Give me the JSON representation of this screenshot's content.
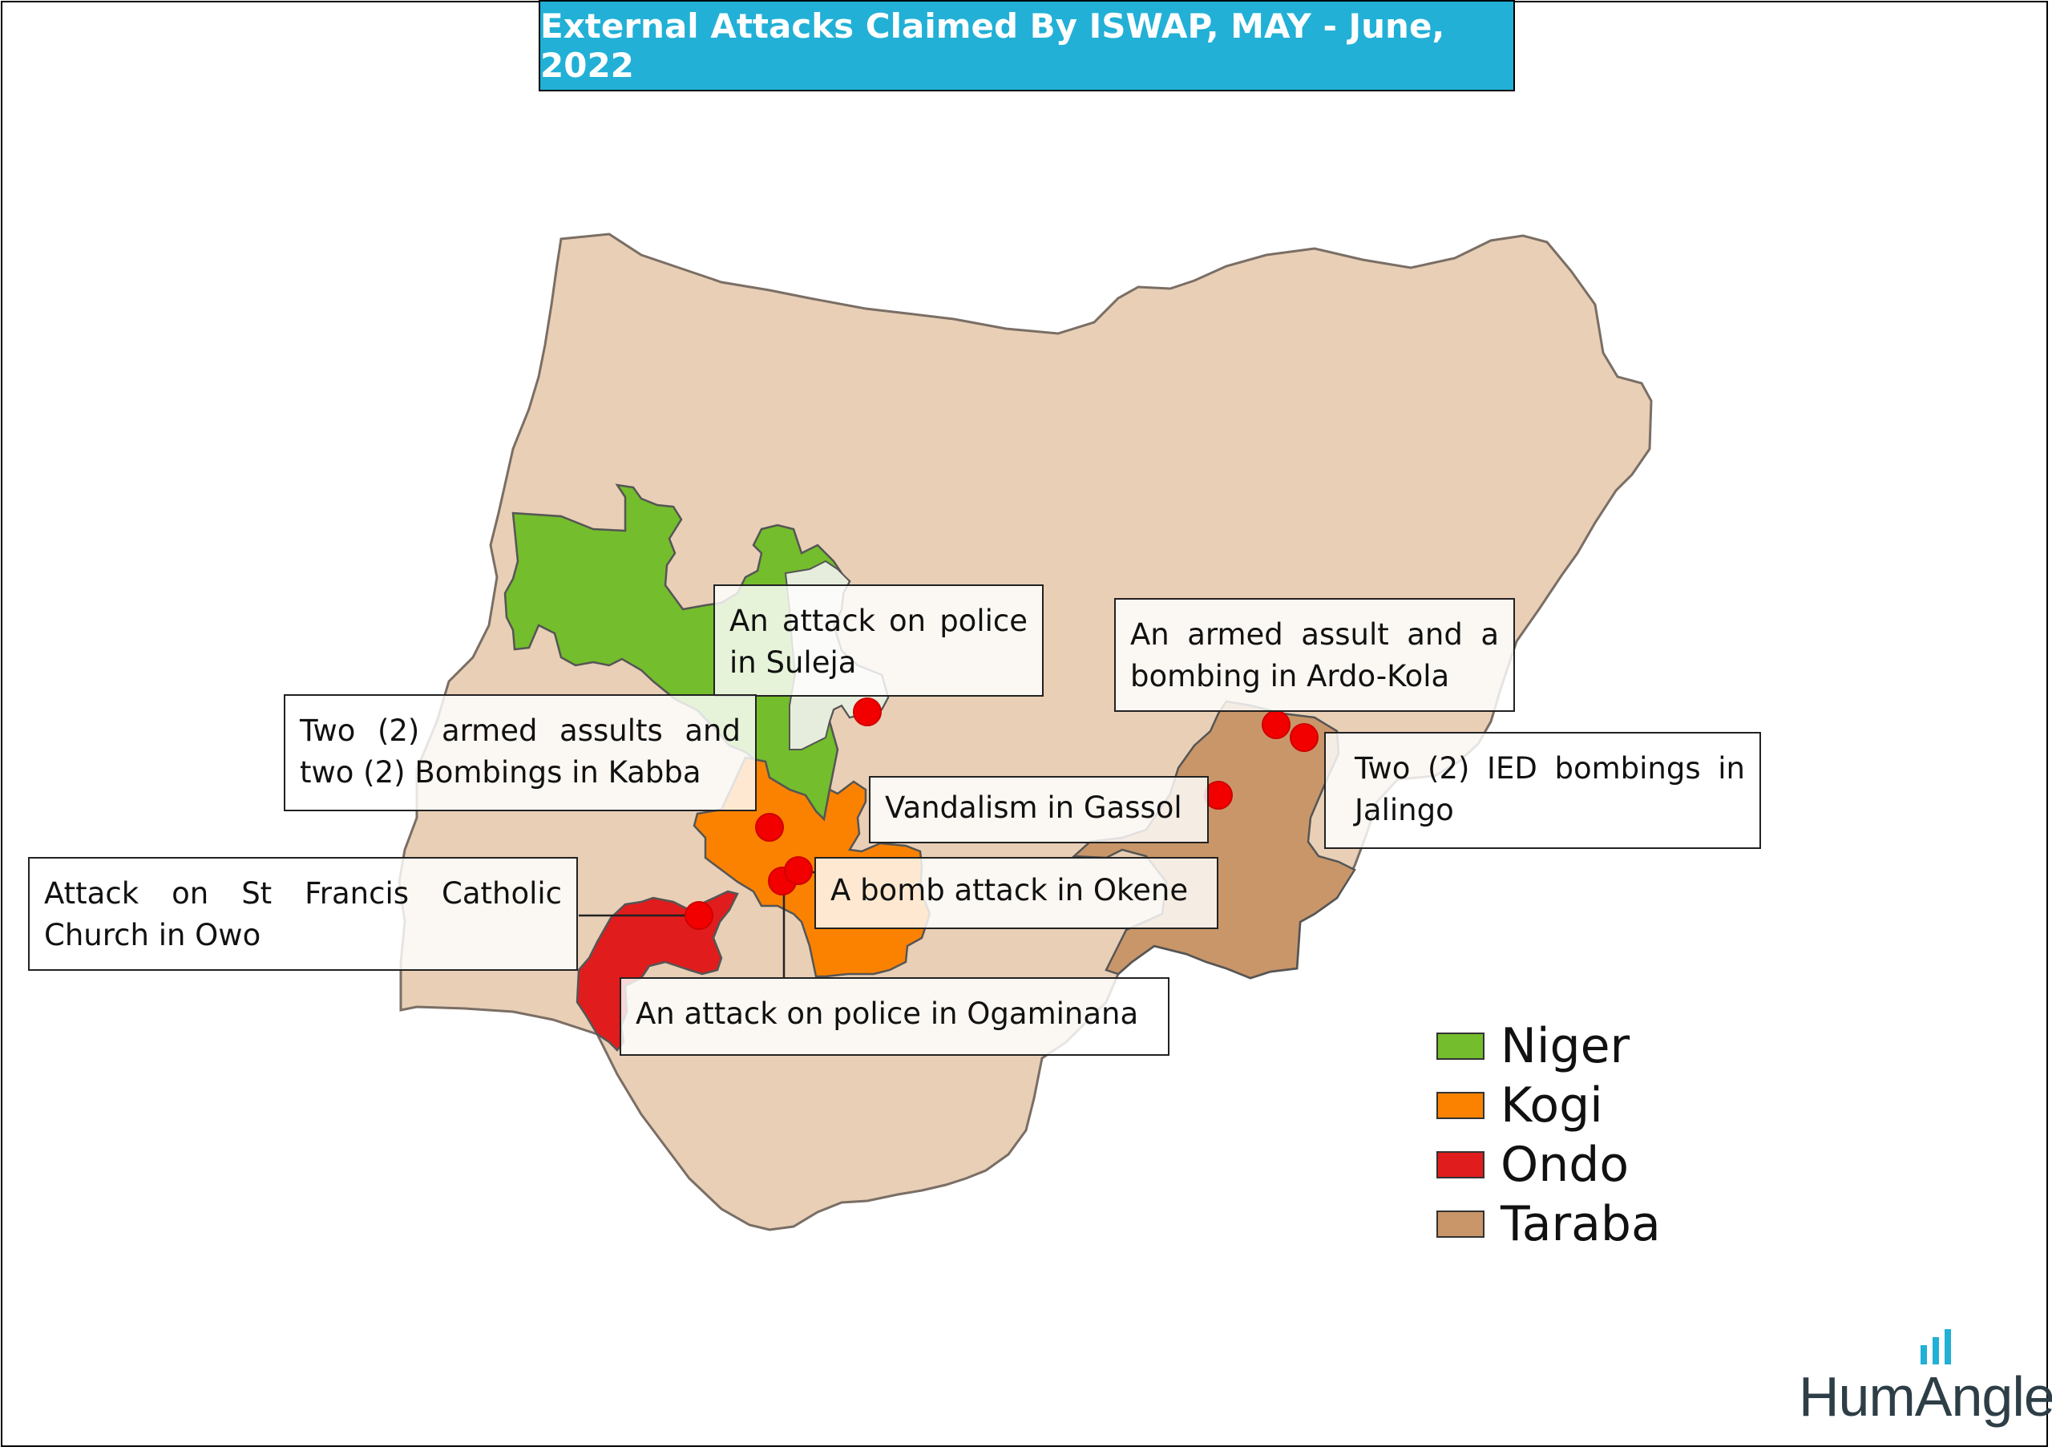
{
  "title": "External Attacks Claimed By ISWAP, MAY - June, 2022",
  "colors": {
    "title_bg": "#22b0d6",
    "nigeria": "#e8cfb6",
    "border": "#7a6e65",
    "niger": "#74bd2c",
    "kogi": "#fb8200",
    "ondo": "#e11c1c",
    "taraba": "#c99669",
    "attack_point": "#f20000"
  },
  "callouts": {
    "suleja": "An attack on police in Suleja",
    "kabba": "Two (2) armed assults and two (2) Bombings in Kabba",
    "owo": "Attack on St Francis Catholic Church in Owo",
    "gassol": "Vandalism in Gassol",
    "okene": "A bomb attack in Okene",
    "ogaminana": "An attack on police in Ogaminana",
    "ardo_kola": "An armed assult and a bombing in Ardo-Kola",
    "jalingo": "Two (2) IED bombings in Jalingo"
  },
  "legend": [
    {
      "label": "Niger",
      "color": "#74bd2c"
    },
    {
      "label": "Kogi",
      "color": "#fb8200"
    },
    {
      "label": "Ondo",
      "color": "#e11c1c"
    },
    {
      "label": "Taraba",
      "color": "#c99669"
    }
  ],
  "logo": {
    "text": "HumAngle",
    "icon": "bar-chart-icon"
  }
}
